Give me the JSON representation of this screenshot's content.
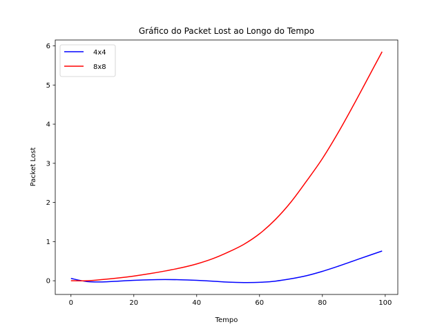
{
  "chart_data": {
    "type": "line",
    "title": "Gráfico do Packet Lost ao Longo do Tempo",
    "xlabel": "Tempo",
    "ylabel": "Packet Lost",
    "xlim": [
      -5,
      104
    ],
    "ylim": [
      -0.35,
      6.15
    ],
    "xticks": [
      0,
      20,
      40,
      60,
      80,
      100
    ],
    "yticks": [
      0,
      1,
      2,
      3,
      4,
      5,
      6
    ],
    "grid": false,
    "legend_position": "top-left",
    "series": [
      {
        "name": "4x4",
        "color": "#0000ff",
        "x": [
          0,
          5,
          10,
          15,
          20,
          25,
          30,
          35,
          40,
          45,
          50,
          55,
          60,
          65,
          70,
          75,
          80,
          85,
          90,
          95,
          99
        ],
        "y": [
          0.06,
          -0.02,
          -0.03,
          -0.01,
          0.01,
          0.025,
          0.03,
          0.025,
          0.01,
          -0.01,
          -0.035,
          -0.045,
          -0.04,
          -0.01,
          0.05,
          0.13,
          0.24,
          0.37,
          0.51,
          0.65,
          0.76
        ]
      },
      {
        "name": "8x8",
        "color": "#ff0000",
        "x": [
          0,
          5,
          10,
          15,
          20,
          25,
          30,
          35,
          40,
          45,
          50,
          55,
          60,
          65,
          70,
          75,
          80,
          85,
          90,
          95,
          99
        ],
        "y": [
          0.0,
          0.0,
          0.03,
          0.07,
          0.12,
          0.18,
          0.25,
          0.33,
          0.43,
          0.56,
          0.73,
          0.93,
          1.2,
          1.56,
          2.01,
          2.55,
          3.12,
          3.78,
          4.5,
          5.25,
          5.85
        ]
      }
    ]
  }
}
